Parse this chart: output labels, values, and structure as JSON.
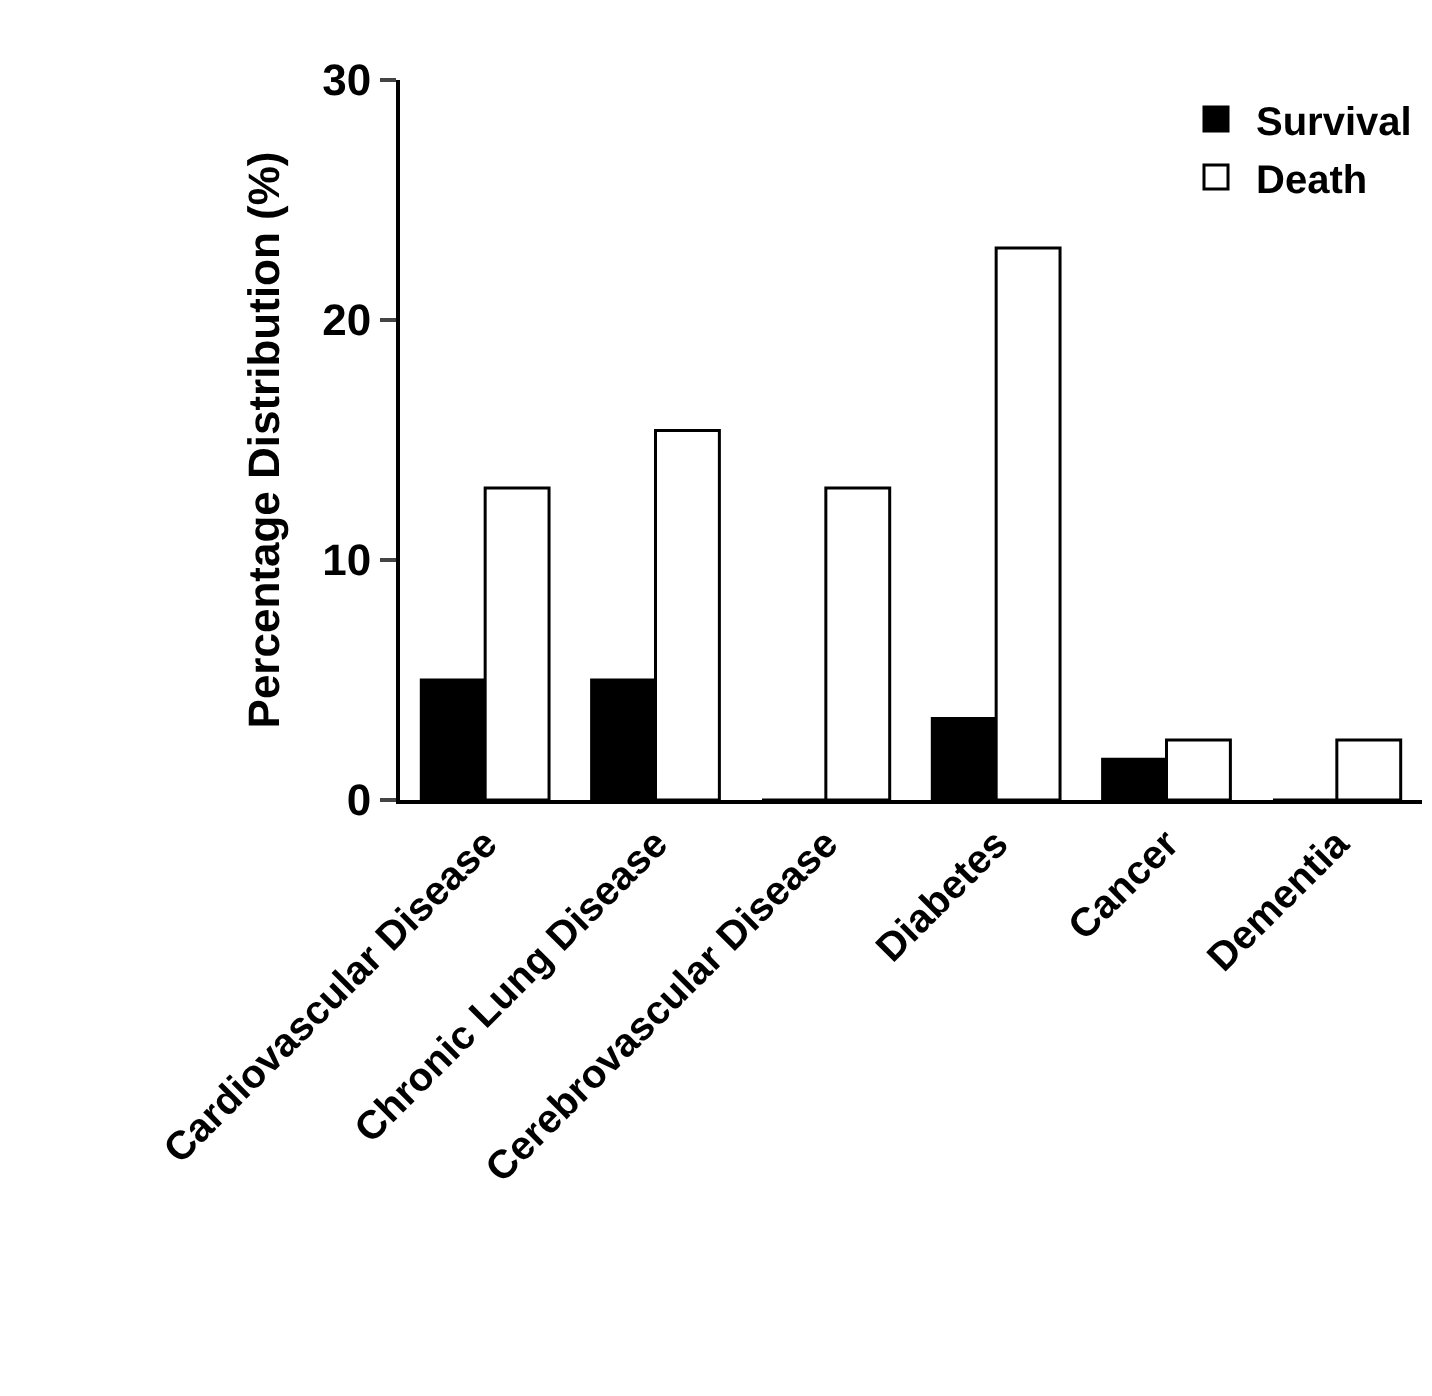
{
  "chart_data": {
    "type": "bar",
    "ylabel": "Percentage Distribution (%)",
    "categories": [
      "Cardiovascular Disease",
      "Chronic Lung Disease",
      "Cerebrovascular Disease",
      "Diabetes",
      "Cancer",
      "Dementia"
    ],
    "series": [
      {
        "name": "Survival",
        "color": "#000000",
        "values": [
          5.0,
          5.0,
          0,
          3.4,
          1.7,
          0
        ]
      },
      {
        "name": "Death",
        "color": "#ffffff",
        "values": [
          13.0,
          15.4,
          13.0,
          23.0,
          2.5,
          2.5
        ]
      }
    ],
    "ylim": [
      0,
      30
    ],
    "yticks": [
      0,
      10,
      20,
      30
    ],
    "legend": "top right"
  }
}
